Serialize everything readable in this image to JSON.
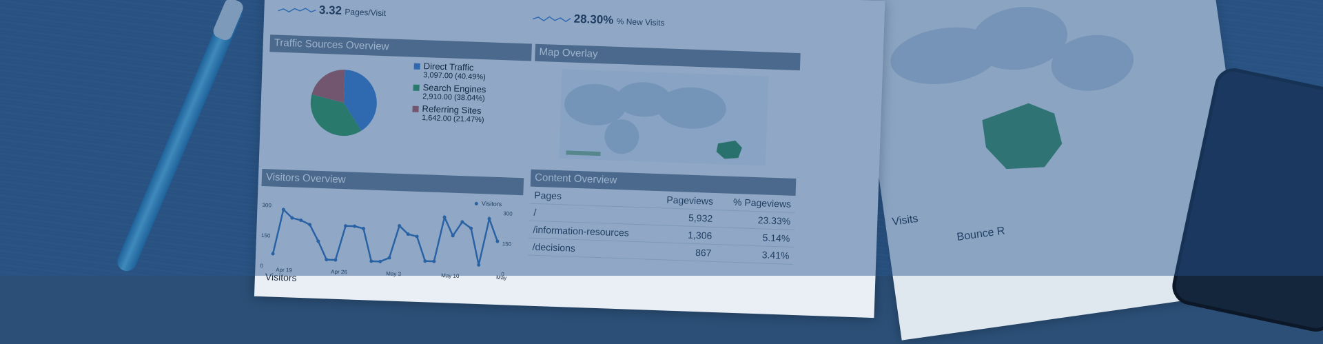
{
  "metrics": {
    "pages_visit_value": "3.32",
    "pages_visit_label": "Pages/Visit",
    "new_visits_value": "28.30%",
    "new_visits_label": "% New Visits"
  },
  "traffic": {
    "title": "Traffic Sources Overview",
    "items": [
      {
        "label": "Direct Traffic",
        "value": "3,097.00 (40.49%)",
        "color": "#3a7fd0"
      },
      {
        "label": "Search Engines",
        "value": "2,910.00 (38.04%)",
        "color": "#2e9a55"
      },
      {
        "label": "Referring Sites",
        "value": "1,642.00 (21.47%)",
        "color": "#b35a5a"
      }
    ],
    "shares": [
      40.49,
      38.04,
      21.47
    ]
  },
  "map": {
    "title": "Map Overlay"
  },
  "visitors": {
    "title": "Visitors Overview",
    "legend": "Visitors",
    "ticks_y": [
      "300",
      "150",
      "0"
    ],
    "ticks_y_right": [
      "300",
      "150",
      "0"
    ],
    "ticks_x": [
      "Apr 19",
      "Apr 26",
      "May 3",
      "May 10",
      "May"
    ],
    "footer": "Visitors",
    "values": [
      60,
      280,
      240,
      230,
      210,
      130,
      40,
      40,
      210,
      210,
      200,
      40,
      40,
      60,
      220,
      180,
      170,
      50,
      50,
      270,
      180,
      250,
      220,
      40,
      270,
      160
    ]
  },
  "content": {
    "title": "Content Overview",
    "headers": [
      "Pages",
      "Pageviews",
      "% Pageviews"
    ],
    "rows": [
      [
        "/",
        "5,932",
        "23.33%"
      ],
      [
        "/information-resources",
        "1,306",
        "5.14%"
      ],
      [
        "/decisions",
        "867",
        "3.41%"
      ]
    ]
  },
  "right_page": {
    "visits_label": "Visits",
    "bounce_label": "Bounce R"
  }
}
